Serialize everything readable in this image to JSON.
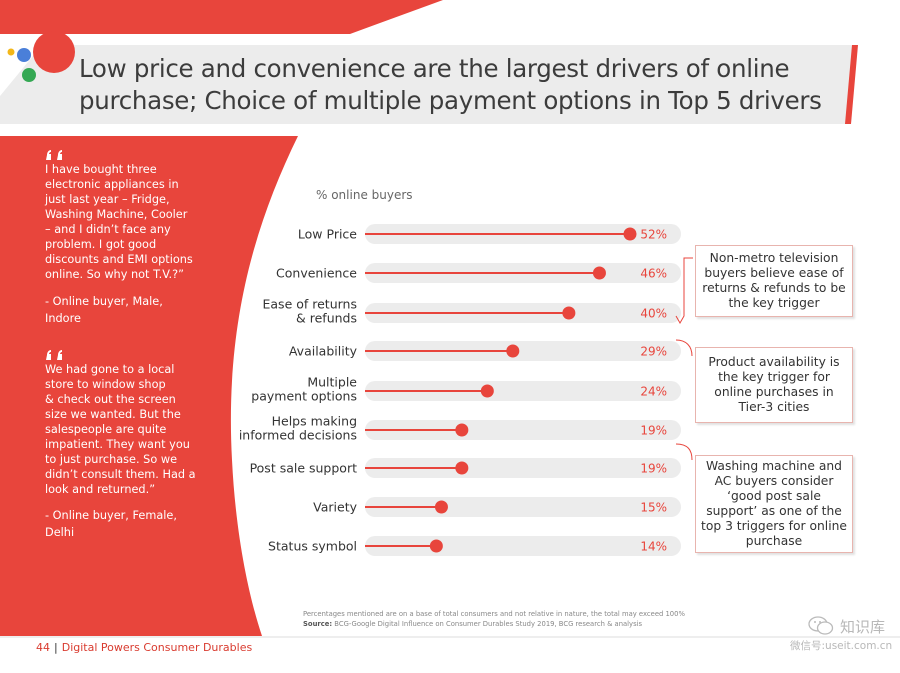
{
  "title": "Low price and convenience are the largest drivers of online purchase; Choice of multiple payment options in Top 5 drivers",
  "colors": {
    "accent_red": "#e8453c",
    "light_gray": "#ececec",
    "logo_blue": "#4a7fd9",
    "logo_yellow": "#f3b719",
    "logo_green": "#34a853"
  },
  "quotes": [
    {
      "icon": "quote-icon",
      "lines": [
        "I have bought three",
        "electronic appliances in",
        "just last year – Fridge,",
        "Washing Machine, Cooler",
        "– and I didn’t face any",
        "problem. I got good",
        "discounts and EMI options",
        "online. So why not T.V.?”"
      ],
      "author_lines": [
        "- Online buyer, Male,",
        "Indore"
      ]
    },
    {
      "icon": "quote-icon",
      "lines": [
        "We had gone to a local",
        "store to window shop",
        "& check out the screen",
        "size we wanted. But the",
        "salespeople are quite",
        "impatient. They want you",
        "to just purchase. So we",
        "didn’t consult them. Had a",
        "look and returned.”"
      ],
      "author_lines": [
        "- Online buyer, Female,",
        "Delhi"
      ]
    }
  ],
  "chart_data": {
    "type": "bar",
    "orientation": "horizontal",
    "ylabel": "% online buyers",
    "categories": [
      "Low Price",
      "Convenience",
      "Ease of returns & refunds",
      "Availability",
      "Multiple payment options",
      "Helps making informed decisions",
      "Post sale support",
      "Variety",
      "Status symbol"
    ],
    "category_lines": [
      [
        "Low Price"
      ],
      [
        "Convenience"
      ],
      [
        "Ease of returns",
        "& refunds"
      ],
      [
        "Availability"
      ],
      [
        "Multiple",
        "payment options"
      ],
      [
        "Helps making",
        "informed decisions"
      ],
      [
        "Post sale support"
      ],
      [
        "Variety"
      ],
      [
        "Status symbol"
      ]
    ],
    "values": [
      52,
      46,
      40,
      29,
      24,
      19,
      19,
      15,
      14
    ],
    "value_labels": [
      "52%",
      "46%",
      "40%",
      "29%",
      "24%",
      "19%",
      "19%",
      "15%",
      "14%"
    ],
    "xlim": [
      0,
      62
    ]
  },
  "callouts": [
    "Non-metro television buyers believe ease of returns & refunds to be the key trigger",
    "Product availability is the key trigger for online purchases in Tier-3 cities",
    "Washing machine and AC buyers consider ‘good post sale support’ as one of the top 3 triggers for online purchase"
  ],
  "footnote": {
    "note": "Percentages mentioned are on a base of total consumers and not relative in nature, the total may exceed 100%",
    "source_label": "Source:",
    "source_text": "BCG-Google Digital Influence on Consumer Durables Study 2019, BCG research & analysis"
  },
  "footer": {
    "page_number": "44",
    "separator": "|",
    "title": "Digital Powers Consumer Durables"
  },
  "watermark": {
    "line1": "知识库",
    "line2": "微信号:useit.com.cn"
  }
}
